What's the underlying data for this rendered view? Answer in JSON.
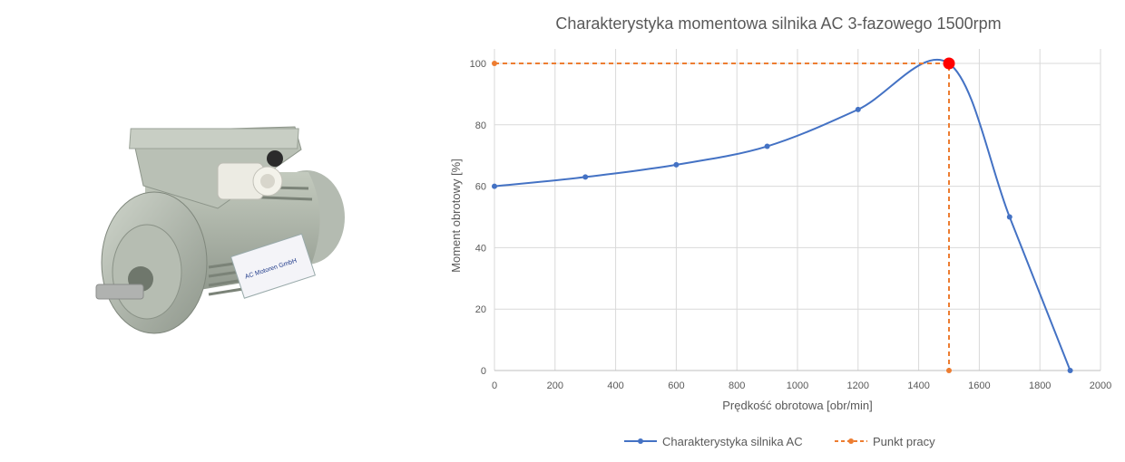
{
  "chart_data": {
    "type": "line",
    "title": "Charakterystyka momentowa silnika AC 3-fazowego 1500rpm",
    "xlabel": "Prędkość obrotowa [obr/min]",
    "ylabel": "Moment obrotowy [%]",
    "xlim": [
      0,
      2000
    ],
    "ylim": [
      0,
      100
    ],
    "xticks": [
      0,
      200,
      400,
      600,
      800,
      1000,
      1200,
      1400,
      1600,
      1800,
      2000
    ],
    "yticks": [
      0,
      20,
      40,
      60,
      80,
      100
    ],
    "grid": true,
    "legend_position": "bottom",
    "series": [
      {
        "name": "Charakterystyka silnika AC",
        "color": "#4472c4",
        "smooth": true,
        "x": [
          0,
          300,
          600,
          900,
          1200,
          1500,
          1700,
          1900
        ],
        "y": [
          60,
          63,
          67,
          73,
          85,
          100,
          50,
          0
        ]
      },
      {
        "name": "Punkt pracy",
        "color": "#ed7d31",
        "dashed": true,
        "x": [
          0,
          1500,
          1500
        ],
        "y": [
          100,
          100,
          0
        ],
        "highlight": {
          "x": 1500,
          "y": 100,
          "color": "#ff0000"
        }
      }
    ]
  },
  "photo": {
    "label": "AC Motoren GmbH",
    "body_color": "#a9b1a6"
  }
}
